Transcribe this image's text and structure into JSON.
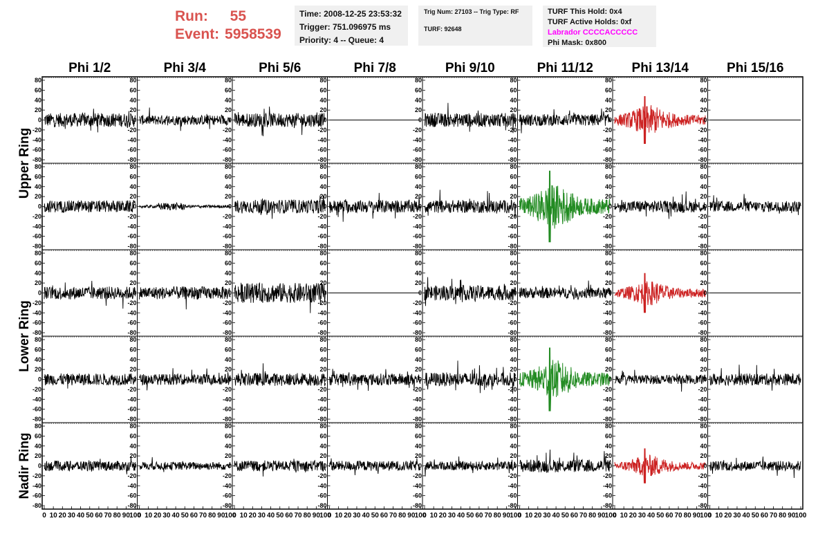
{
  "header": {
    "run_label": "Run:",
    "run_value": "55",
    "event_label": "Event:",
    "event_value": "5958539",
    "time": "Time: 2008-12-25 23:53:32",
    "trigger": "Trigger: 751.096975 ms",
    "priority": "Priority: 4 -- Queue: 4",
    "trig_num": "Trig Num: 27103 -- Trig Type: RF",
    "turf": "TURF: 92648",
    "turf_this_hold": "TURF This Hold: 0x4",
    "turf_active_holds": "TURF Active Holds: 0xf",
    "labrador": "Labrador CCCCACCCCC",
    "phi_mask": "Phi Mask: 0x800"
  },
  "colors": {
    "run_text": "#d9534f",
    "labrador_text": "#ff00ff",
    "trace_default": "#000000",
    "trace_red": "#cc2222",
    "trace_green": "#228b22"
  },
  "chart_data": {
    "type": "line",
    "columns": [
      "Phi 1/2",
      "Phi 3/4",
      "Phi 5/6",
      "Phi 7/8",
      "Phi 9/10",
      "Phi 11/12",
      "Phi 13/14",
      "Phi 15/16"
    ],
    "ring_labels": [
      "Upper Ring",
      "Lower Ring",
      "Nadir Ring"
    ],
    "rows_per_ring": [
      2,
      2,
      1
    ],
    "x_ticks": [
      "0",
      "10",
      "20",
      "30",
      "40",
      "50",
      "60",
      "70",
      "80",
      "90",
      "100"
    ],
    "xlim": [
      0,
      100
    ],
    "y_ticks": [
      "80",
      "60",
      "40",
      "20",
      "0",
      "-20",
      "-40",
      "-60",
      "-80"
    ],
    "ylim": [
      -80,
      80
    ],
    "grid": false,
    "panels": [
      [
        {
          "style": "noise",
          "amp": 14,
          "color": "black"
        },
        {
          "style": "noise",
          "amp": 10,
          "color": "black"
        },
        {
          "style": "noise",
          "amp": 14,
          "color": "black"
        },
        {
          "style": "flat",
          "amp": 0,
          "color": "black"
        },
        {
          "style": "noise",
          "amp": 14,
          "color": "black"
        },
        {
          "style": "noise",
          "amp": 12,
          "color": "black"
        },
        {
          "style": "burst",
          "amp": 30,
          "color": "red"
        },
        {
          "style": "flat",
          "amp": 0,
          "color": "black"
        }
      ],
      [
        {
          "style": "noise",
          "amp": 12,
          "color": "black"
        },
        {
          "style": "small",
          "amp": 3,
          "color": "black"
        },
        {
          "style": "noise",
          "amp": 14,
          "color": "black"
        },
        {
          "style": "noise",
          "amp": 13,
          "color": "black"
        },
        {
          "style": "noise",
          "amp": 13,
          "color": "black"
        },
        {
          "style": "burst",
          "amp": 45,
          "color": "green"
        },
        {
          "style": "noise",
          "amp": 12,
          "color": "black"
        },
        {
          "style": "noise",
          "amp": 11,
          "color": "black"
        }
      ],
      [
        {
          "style": "noise",
          "amp": 13,
          "color": "black"
        },
        {
          "style": "noise",
          "amp": 13,
          "color": "black"
        },
        {
          "style": "noise",
          "amp": 20,
          "color": "black"
        },
        {
          "style": "flat",
          "amp": 0,
          "color": "black"
        },
        {
          "style": "noise",
          "amp": 15,
          "color": "black"
        },
        {
          "style": "noise",
          "amp": 11,
          "color": "black"
        },
        {
          "style": "burst",
          "amp": 25,
          "color": "red"
        },
        {
          "style": "flat",
          "amp": 0,
          "color": "black"
        }
      ],
      [
        {
          "style": "noise",
          "amp": 12,
          "color": "black"
        },
        {
          "style": "noise",
          "amp": 11,
          "color": "black"
        },
        {
          "style": "noise",
          "amp": 13,
          "color": "black"
        },
        {
          "style": "noise",
          "amp": 12,
          "color": "black"
        },
        {
          "style": "noise",
          "amp": 14,
          "color": "black"
        },
        {
          "style": "burst",
          "amp": 40,
          "color": "green"
        },
        {
          "style": "noise",
          "amp": 9,
          "color": "black"
        },
        {
          "style": "noise",
          "amp": 12,
          "color": "black"
        }
      ],
      [
        {
          "style": "noise",
          "amp": 10,
          "color": "black"
        },
        {
          "style": "noise",
          "amp": 8,
          "color": "black"
        },
        {
          "style": "noise",
          "amp": 11,
          "color": "black"
        },
        {
          "style": "noise",
          "amp": 10,
          "color": "black"
        },
        {
          "style": "noise",
          "amp": 9,
          "color": "black"
        },
        {
          "style": "noise",
          "amp": 13,
          "color": "black"
        },
        {
          "style": "burst",
          "amp": 22,
          "color": "red"
        },
        {
          "style": "noise",
          "amp": 10,
          "color": "black"
        }
      ]
    ]
  }
}
